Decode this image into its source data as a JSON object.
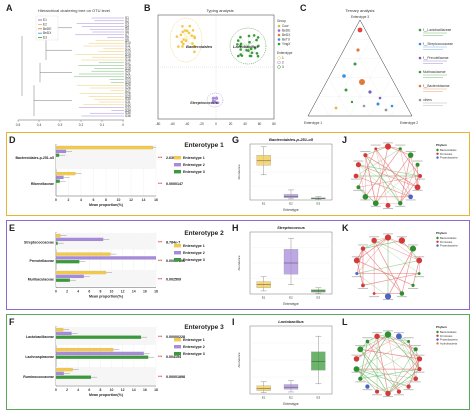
{
  "colors": {
    "e1": "#f2c94c",
    "e2": "#a78bdb",
    "e3": "#3c9a3c",
    "e1_border": "#e7b532",
    "e2_border": "#8a6ccc",
    "e3_border": "#5aa85a",
    "pvalue_red": "#d32020",
    "edge_red": "#e46a6a",
    "edge_green": "#66bb66"
  },
  "panels": {
    "A": {
      "letter": "A",
      "title": "Hierarchical clustering tree on OTU level",
      "legend": [
        "E1",
        "E2",
        "BeDE",
        "BeDX",
        "E3"
      ],
      "axis_ticks": [
        "0.5",
        "0.4",
        "0.3",
        "0.2",
        "0.1",
        "0"
      ]
    },
    "B": {
      "letter": "B",
      "title": "Typing analysis",
      "legend_group_title": "Group",
      "groups": [
        "Cow",
        "BeDE",
        "BeDX",
        "BeTd",
        "YingX"
      ],
      "enterotype_title": "Enterotype",
      "enterotypes": [
        "1",
        "2",
        "3"
      ],
      "labels": [
        "Bacteroidales",
        "Lactobacillus",
        "Streptococcus"
      ],
      "x_ticks": [
        "-80",
        "-60",
        "-40",
        "-20",
        "0",
        "20",
        "40",
        "60",
        "80"
      ]
    },
    "C": {
      "letter": "C",
      "title": "Ternary analysis",
      "vertex_labels": [
        "Enterotype 3",
        "Enterotype 1",
        "Enterotype 2"
      ],
      "legend_items": [
        "f__Lactobacillaceae",
        "f__Streptococcaceae",
        "f__Prevotellaceae",
        "Muribaculaceae",
        "f__Bacteroidaceae",
        "others"
      ]
    },
    "D": {
      "letter": "D",
      "title": "Enterotype 1",
      "rows": [
        {
          "taxon": "Bacteroidales-p-251-o5",
          "p": "2.639e-7"
        },
        {
          "taxon": "Rikenellaceae",
          "p": "0.0000147"
        }
      ],
      "axis_label": "Mean proportion(%)",
      "x_ticks": [
        "0",
        "2",
        "4",
        "6",
        "8",
        "10",
        "12",
        "14",
        "16"
      ],
      "legend": [
        "Enterotype 1",
        "Enterotype 2",
        "Enterotype 3"
      ],
      "stars": "***"
    },
    "E": {
      "letter": "E",
      "title": "Enterotype 2",
      "rows": [
        {
          "taxon": "Streptococcaceae",
          "p": "8.784e-7"
        },
        {
          "taxon": "Prevotellaceae",
          "p": "0.00007296"
        },
        {
          "taxon": "Muribaculaceae",
          "p": "0.002509"
        }
      ],
      "axis_label": "Mean proportion(%)",
      "x_ticks": [
        "0",
        "2",
        "4",
        "6",
        "8",
        "10",
        "12",
        "14",
        "16",
        "18"
      ],
      "legend": [
        "Enterotype 1",
        "Enterotype 2",
        "Enterotype 3"
      ],
      "stars": "***"
    },
    "F": {
      "letter": "F",
      "title": "Enterotype 3",
      "rows": [
        {
          "taxon": "Lactobacillaceae",
          "p": "0.00000228"
        },
        {
          "taxon": "Lachnospiraceae",
          "p": "0.004154"
        },
        {
          "taxon": "Ruminococcaceae",
          "p": "0.00001898"
        }
      ],
      "axis_label": "Mean proportion(%)",
      "x_ticks": [
        "0",
        "2",
        "4",
        "6",
        "8",
        "10",
        "12",
        "14",
        "16",
        "18"
      ],
      "legend": [
        "Enterotype 1",
        "Enterotype 2",
        "Enterotype 3"
      ],
      "stars": "***"
    },
    "G": {
      "letter": "G",
      "title": "Bacteroidales-p-251-o5",
      "xlabel": "Enterotype",
      "ylabel": "Abundance",
      "cats": [
        "E1",
        "E2",
        "E3"
      ]
    },
    "H": {
      "letter": "H",
      "title": "Streptococcus",
      "xlabel": "Enterotype",
      "ylabel": "Abundance",
      "cats": [
        "E1",
        "E2",
        "E3"
      ]
    },
    "I": {
      "letter": "I",
      "title": "Lactobacillus",
      "xlabel": "Enterotype",
      "ylabel": "Abundance",
      "cats": [
        "E1",
        "E2",
        "E3"
      ]
    },
    "J": {
      "letter": "J",
      "legend_title": "Phylum",
      "legend": [
        "Bacteroidetes",
        "Firmicutes",
        "Proteobacteria"
      ]
    },
    "K": {
      "letter": "K",
      "legend_title": "Phylum",
      "legend": [
        "Bacteroidetes",
        "Firmicutes",
        "Proteobacteria"
      ]
    },
    "L": {
      "letter": "L",
      "legend_title": "Phylum",
      "legend": [
        "Bacteroidetes",
        "Firmicutes",
        "Proteobacteria",
        "Actinobacteria"
      ]
    }
  },
  "chart_data": [
    {
      "type": "bar",
      "title": "Enterotype 1",
      "xlabel": "Mean proportion(%)",
      "categories": [
        "Bacteroidales-p-251-o5",
        "Rikenellaceae"
      ],
      "series": [
        {
          "name": "Enterotype 1",
          "values": [
            15.5,
            3.1
          ]
        },
        {
          "name": "Enterotype 2",
          "values": [
            1.6,
            1.2
          ]
        },
        {
          "name": "Enterotype 3",
          "values": [
            0.5,
            0.6
          ]
        }
      ],
      "xlim": [
        0,
        16
      ]
    },
    {
      "type": "bar",
      "title": "Enterotype 2",
      "xlabel": "Mean proportion(%)",
      "categories": [
        "Streptococcaceae",
        "Prevotellaceae",
        "Muribaculaceae"
      ],
      "series": [
        {
          "name": "Enterotype 1",
          "values": [
            0.8,
            9.8,
            9.0
          ]
        },
        {
          "name": "Enterotype 2",
          "values": [
            8.5,
            18.0,
            5.0
          ]
        },
        {
          "name": "Enterotype 3",
          "values": [
            0.3,
            4.2,
            2.5
          ]
        }
      ],
      "xlim": [
        0,
        18
      ]
    },
    {
      "type": "bar",
      "title": "Enterotype 3",
      "xlabel": "Mean proportion(%)",
      "categories": [
        "Lactobacillaceae",
        "Lachnospiraceae",
        "Ruminococcaceae"
      ],
      "series": [
        {
          "name": "Enterotype 1",
          "values": [
            1.3,
            10.3,
            3.0
          ]
        },
        {
          "name": "Enterotype 2",
          "values": [
            2.8,
            15.8,
            1.4
          ]
        },
        {
          "name": "Enterotype 3",
          "values": [
            15.3,
            16.6,
            6.3
          ]
        }
      ],
      "xlim": [
        0,
        18
      ]
    },
    {
      "type": "box",
      "title": "Bacteroidales-p-251-o5",
      "categories": [
        "E1",
        "E2",
        "E3"
      ],
      "series": [
        {
          "name": "E1",
          "q1": 0.62,
          "median": 0.7,
          "q3": 0.8,
          "min": 0.45,
          "max": 0.95
        },
        {
          "name": "E2",
          "q1": 0.04,
          "median": 0.06,
          "q3": 0.1,
          "min": 0.02,
          "max": 0.18
        },
        {
          "name": "E3",
          "q1": 0.02,
          "median": 0.03,
          "q3": 0.04,
          "min": 0.01,
          "max": 0.06
        }
      ]
    },
    {
      "type": "box",
      "title": "Streptococcus",
      "categories": [
        "E1",
        "E2",
        "E3"
      ],
      "series": [
        {
          "name": "E1",
          "q1": 0.1,
          "median": 0.15,
          "q3": 0.2,
          "min": 0.05,
          "max": 0.28
        },
        {
          "name": "E2",
          "q1": 0.32,
          "median": 0.5,
          "q3": 0.72,
          "min": 0.15,
          "max": 0.9
        },
        {
          "name": "E3",
          "q1": 0.03,
          "median": 0.05,
          "q3": 0.07,
          "min": 0.01,
          "max": 0.1
        }
      ]
    },
    {
      "type": "box",
      "title": "Lactobacillus",
      "categories": [
        "E1",
        "E2",
        "E3"
      ],
      "series": [
        {
          "name": "E1",
          "q1": 0.05,
          "median": 0.08,
          "q3": 0.12,
          "min": 0.02,
          "max": 0.18
        },
        {
          "name": "E2",
          "q1": 0.07,
          "median": 0.1,
          "q3": 0.14,
          "min": 0.03,
          "max": 0.2
        },
        {
          "name": "E3",
          "q1": 0.35,
          "median": 0.48,
          "q3": 0.62,
          "min": 0.15,
          "max": 0.85
        }
      ]
    }
  ]
}
